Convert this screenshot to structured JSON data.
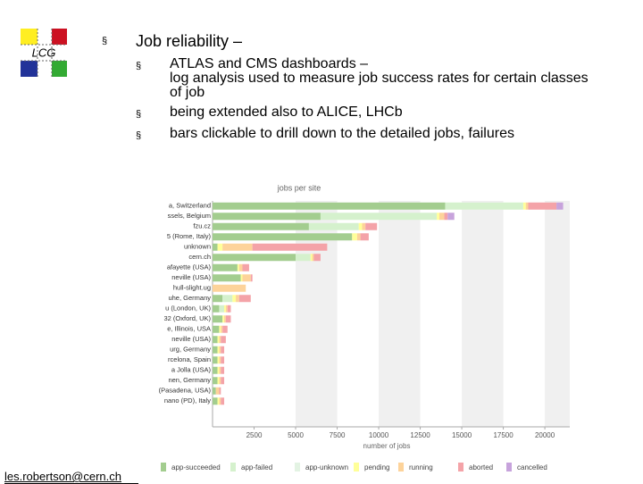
{
  "slide": {
    "logo": "LCG",
    "bullet_marker": "§",
    "heading": "Job reliability –",
    "bullets": [
      [
        "ATLAS and CMS dashboards –",
        "log analysis used to measure job success rates for certain classes of job"
      ],
      [
        "being extended also to ALICE, LHCb"
      ],
      [
        "bars clickable to drill down to the detailed jobs, failures"
      ]
    ],
    "footer": "les.robertson@cern.ch"
  },
  "chart_data": {
    "type": "bar",
    "orientation": "horizontal",
    "stacked": true,
    "title": "jobs per site",
    "x_label": "number of jobs",
    "categories": [
      "a, Switzerland",
      "ssels, Belgium",
      "fzu.cz",
      "5 (Rome, Italy)",
      "unknown",
      "cern.ch",
      "afayette (USA)",
      "neville (USA)",
      "hull-slight.ug",
      "uhe, Germany",
      "u (London, UK)",
      "32 (Oxford, UK)",
      "e, Illinois, USA",
      "neville (USA)",
      "urg, Germany",
      "rcelona, Spain",
      "a Jolla (USA)",
      "nen, Germany",
      "(Pasadena, USA)",
      "nano (PD), Italy"
    ],
    "series": [
      {
        "name": "app-succeeded",
        "color": "#a3cd8f",
        "values": [
          14000,
          6500,
          5800,
          8400,
          300,
          5000,
          1500,
          1700,
          0,
          600,
          400,
          600,
          400,
          300,
          300,
          300,
          300,
          300,
          200,
          300
        ]
      },
      {
        "name": "app-failed",
        "color": "#d5f1cd",
        "values": [
          4700,
          7000,
          3000,
          0,
          0,
          900,
          0,
          0,
          0,
          600,
          300,
          0,
          0,
          0,
          0,
          0,
          0,
          0,
          0,
          0
        ]
      },
      {
        "name": "app-unknown",
        "color": "#e3f3e3",
        "values": [
          0,
          0,
          0,
          0,
          0,
          0,
          0,
          0,
          0,
          0,
          0,
          0,
          0,
          0,
          0,
          0,
          0,
          0,
          0,
          0
        ]
      },
      {
        "name": "pending",
        "color": "#ffff99",
        "values": [
          150,
          150,
          200,
          300,
          300,
          100,
          100,
          100,
          0,
          200,
          100,
          100,
          100,
          100,
          100,
          100,
          100,
          100,
          0,
          100
        ]
      },
      {
        "name": "running",
        "color": "#fdd39a",
        "values": [
          150,
          300,
          200,
          200,
          1800,
          100,
          200,
          500,
          2000,
          200,
          100,
          100,
          100,
          100,
          100,
          100,
          100,
          100,
          200,
          100
        ]
      },
      {
        "name": "aborted",
        "color": "#f4a3a8",
        "values": [
          1700,
          200,
          700,
          500,
          4500,
          400,
          400,
          100,
          0,
          700,
          200,
          300,
          300,
          300,
          200,
          200,
          200,
          200,
          100,
          200
        ]
      },
      {
        "name": "cancelled",
        "color": "#c7a3dc",
        "values": [
          400,
          400,
          0,
          0,
          0,
          0,
          0,
          0,
          0,
          0,
          0,
          0,
          0,
          0,
          0,
          0,
          0,
          0,
          0,
          0
        ]
      }
    ],
    "xlim": [
      0,
      21500
    ],
    "xticks": [
      2500,
      5000,
      7500,
      10000,
      12500,
      15000,
      17500,
      20000
    ],
    "banded_background": true,
    "legend": "bottom"
  }
}
